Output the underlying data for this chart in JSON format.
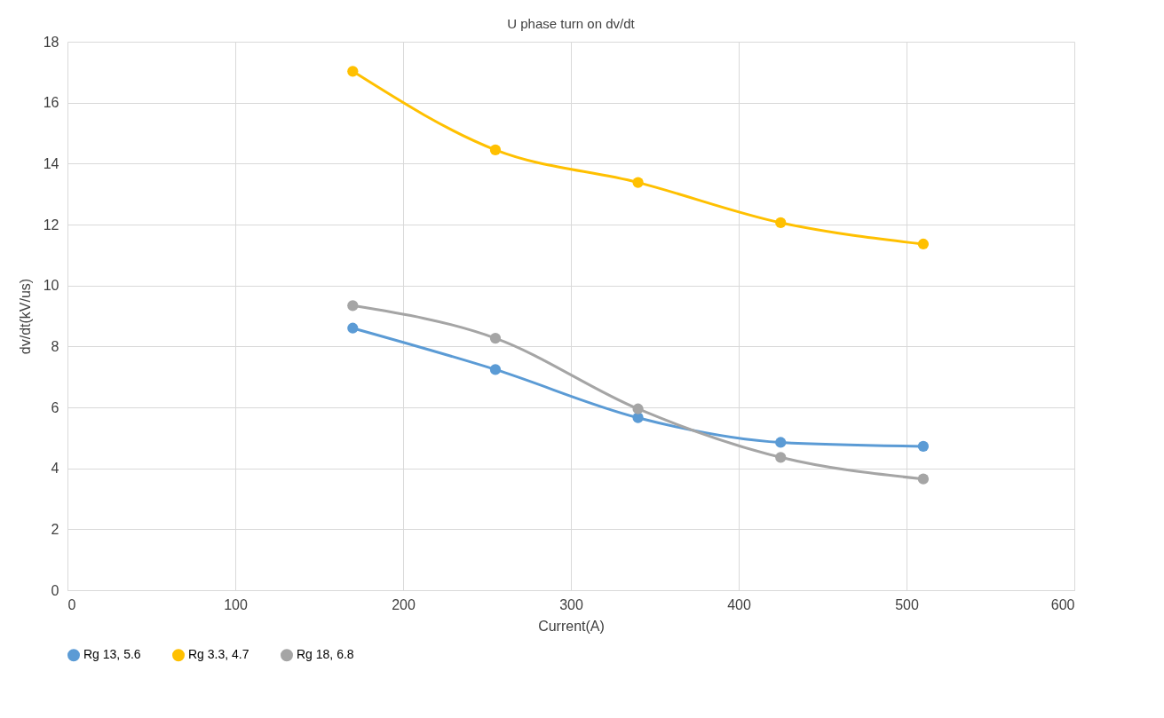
{
  "chart_data": {
    "type": "line",
    "title": "U phase turn on dv/dt",
    "xlabel": "Current(A)",
    "ylabel": "dv/dt(kV/us)",
    "x": [
      170,
      255,
      340,
      425,
      510
    ],
    "series": [
      {
        "name": "Rg 13, 5.6",
        "color": "#5b9bd5",
        "values": [
          8.6,
          7.24,
          5.66,
          4.85,
          4.72
        ]
      },
      {
        "name": "Rg 3.3, 4.7",
        "color": "#ffc000",
        "values": [
          17.03,
          14.45,
          13.38,
          12.06,
          11.36
        ]
      },
      {
        "name": "Rg 18, 6.8",
        "color": "#a5a5a5",
        "values": [
          9.34,
          8.27,
          5.95,
          4.36,
          3.65
        ]
      }
    ],
    "xlim": [
      0,
      600
    ],
    "xticks": [
      0,
      100,
      200,
      300,
      400,
      500,
      600
    ],
    "ylim": [
      0,
      18
    ],
    "yticks": [
      0,
      2,
      4,
      6,
      8,
      10,
      12,
      14,
      16,
      18
    ],
    "grid": true,
    "legend": "bottom",
    "marker": "circle",
    "line_style": "solid"
  }
}
